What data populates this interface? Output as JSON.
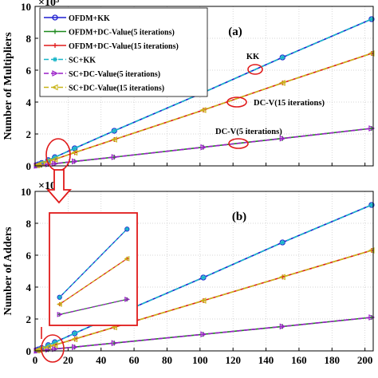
{
  "chart_data": [
    {
      "type": "line",
      "panel_label": "(a)",
      "ylabel": "Number of Multipliers",
      "xlim": [
        0,
        205
      ],
      "ylim": [
        0,
        10
      ],
      "x_ticks": [
        "0",
        "20",
        "40",
        "60",
        "80",
        "100",
        "120",
        "140",
        "160",
        "180",
        "200"
      ],
      "y_ticks": [
        "0",
        "2",
        "4",
        "6",
        "8",
        "10"
      ],
      "scale_label": "×10⁵",
      "x": [
        1,
        2,
        4,
        8,
        12,
        24,
        48,
        102,
        150,
        204
      ],
      "series": [
        {
          "name": "OFDM+KK",
          "color": "#1f1fd0",
          "marker": "circle",
          "dash": "solid",
          "values": [
            0.05,
            0.09,
            0.18,
            0.36,
            0.54,
            1.1,
            2.2,
            4.6,
            6.8,
            9.2
          ]
        },
        {
          "name": "OFDM+DC-Value(5 iterations)",
          "color": "#1e8a1e",
          "marker": "plus",
          "dash": "solid",
          "values": [
            0.01,
            0.02,
            0.05,
            0.1,
            0.14,
            0.28,
            0.55,
            1.17,
            1.72,
            2.35
          ]
        },
        {
          "name": "OFDM+DC-Value(15 iterations)",
          "color": "#e01a1a",
          "marker": "plus",
          "dash": "solid",
          "values": [
            0.04,
            0.07,
            0.14,
            0.28,
            0.41,
            0.83,
            1.65,
            3.5,
            5.2,
            7.05
          ]
        },
        {
          "name": "SC+KK",
          "color": "#19b6c8",
          "marker": "star",
          "dash": "dashed",
          "values": [
            0.05,
            0.09,
            0.18,
            0.36,
            0.54,
            1.1,
            2.2,
            4.6,
            6.8,
            9.2
          ]
        },
        {
          "name": "SC+DC-Value(5 iterations)",
          "color": "#9a1fc8",
          "marker": "triangle-right",
          "dash": "dashed",
          "values": [
            0.01,
            0.02,
            0.05,
            0.1,
            0.14,
            0.28,
            0.55,
            1.17,
            1.72,
            2.35
          ]
        },
        {
          "name": "SC+DC-Value(15 iterations)",
          "color": "#c8b418",
          "marker": "triangle-left",
          "dash": "dashed",
          "values": [
            0.04,
            0.07,
            0.14,
            0.28,
            0.41,
            0.83,
            1.65,
            3.5,
            5.2,
            7.05
          ]
        }
      ],
      "annotations": [
        "KK",
        "DC-V(15 iterations)",
        "DC-V(5 iterations)"
      ]
    },
    {
      "type": "line",
      "panel_label": "(b)",
      "ylabel": "Number of Adders",
      "xlim": [
        0,
        205
      ],
      "ylim": [
        0,
        10
      ],
      "x_ticks": [
        "0",
        "20",
        "40",
        "60",
        "80",
        "100",
        "120",
        "140",
        "160",
        "180",
        "200"
      ],
      "y_ticks": [
        "0",
        "2",
        "4",
        "6",
        "8",
        "10"
      ],
      "scale_label": "×10⁵",
      "x": [
        1,
        2,
        4,
        8,
        12,
        24,
        48,
        102,
        150,
        204
      ],
      "series": [
        {
          "name": "OFDM+KK",
          "color": "#1f1fd0",
          "marker": "circle",
          "dash": "solid",
          "values": [
            0.05,
            0.09,
            0.18,
            0.36,
            0.54,
            1.1,
            2.2,
            4.6,
            6.8,
            9.15
          ]
        },
        {
          "name": "OFDM+DC-Value(5 iterations)",
          "color": "#1e8a1e",
          "marker": "plus",
          "dash": "solid",
          "values": [
            0.01,
            0.02,
            0.04,
            0.08,
            0.12,
            0.24,
            0.49,
            1.04,
            1.53,
            2.1
          ]
        },
        {
          "name": "OFDM+DC-Value(15 iterations)",
          "color": "#e01a1a",
          "marker": "plus",
          "dash": "solid",
          "values": [
            0.03,
            0.06,
            0.12,
            0.25,
            0.37,
            0.74,
            1.48,
            3.15,
            4.63,
            6.3
          ]
        },
        {
          "name": "SC+KK",
          "color": "#19b6c8",
          "marker": "star",
          "dash": "dashed",
          "values": [
            0.05,
            0.09,
            0.18,
            0.36,
            0.54,
            1.1,
            2.2,
            4.6,
            6.8,
            9.15
          ]
        },
        {
          "name": "SC+DC-Value(5 iterations)",
          "color": "#9a1fc8",
          "marker": "triangle-right",
          "dash": "dashed",
          "values": [
            0.01,
            0.02,
            0.04,
            0.08,
            0.12,
            0.24,
            0.49,
            1.04,
            1.53,
            2.1
          ]
        },
        {
          "name": "SC+DC-Value(15 iterations)",
          "color": "#c8b418",
          "marker": "triangle-left",
          "dash": "dashed",
          "values": [
            0.03,
            0.06,
            0.12,
            0.25,
            0.37,
            0.74,
            1.48,
            3.15,
            4.63,
            6.3
          ]
        }
      ]
    }
  ]
}
